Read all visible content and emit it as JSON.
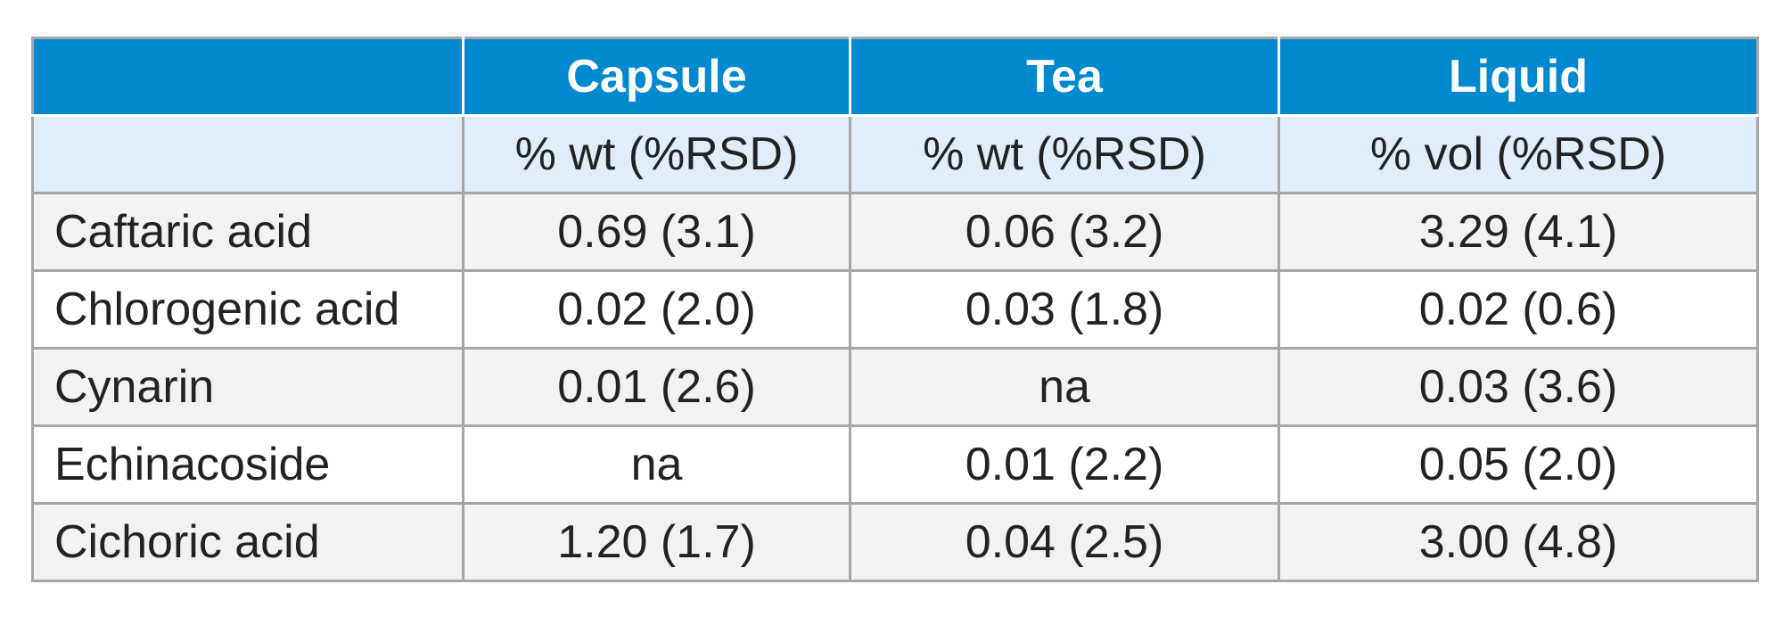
{
  "table": {
    "columns": [
      "",
      "Capsule",
      "Tea",
      "Liquid"
    ],
    "units": [
      "",
      "% wt (%RSD)",
      "% wt (%RSD)",
      "% vol (%RSD)"
    ],
    "rows": [
      {
        "label": "Caftaric acid",
        "values": [
          "0.69 (3.1)",
          "0.06 (3.2)",
          "3.29 (4.1)"
        ]
      },
      {
        "label": "Chlorogenic acid",
        "values": [
          "0.02 (2.0)",
          "0.03 (1.8)",
          "0.02 (0.6)"
        ]
      },
      {
        "label": "Cynarin",
        "values": [
          "0.01 (2.6)",
          "na",
          "0.03 (3.6)"
        ]
      },
      {
        "label": "Echinacoside",
        "values": [
          "na",
          "0.01 (2.2)",
          "0.05 (2.0)"
        ]
      },
      {
        "label": "Cichoric acid",
        "values": [
          "1.20 (1.7)",
          "0.04 (2.5)",
          "3.00 (4.8)"
        ]
      }
    ],
    "colors": {
      "header_bg": "#0089cf",
      "header_text": "#ffffff",
      "units_bg": "#e1eefa",
      "stripe_bg": "#f2f2f4",
      "border": "#a6a6a6"
    }
  }
}
